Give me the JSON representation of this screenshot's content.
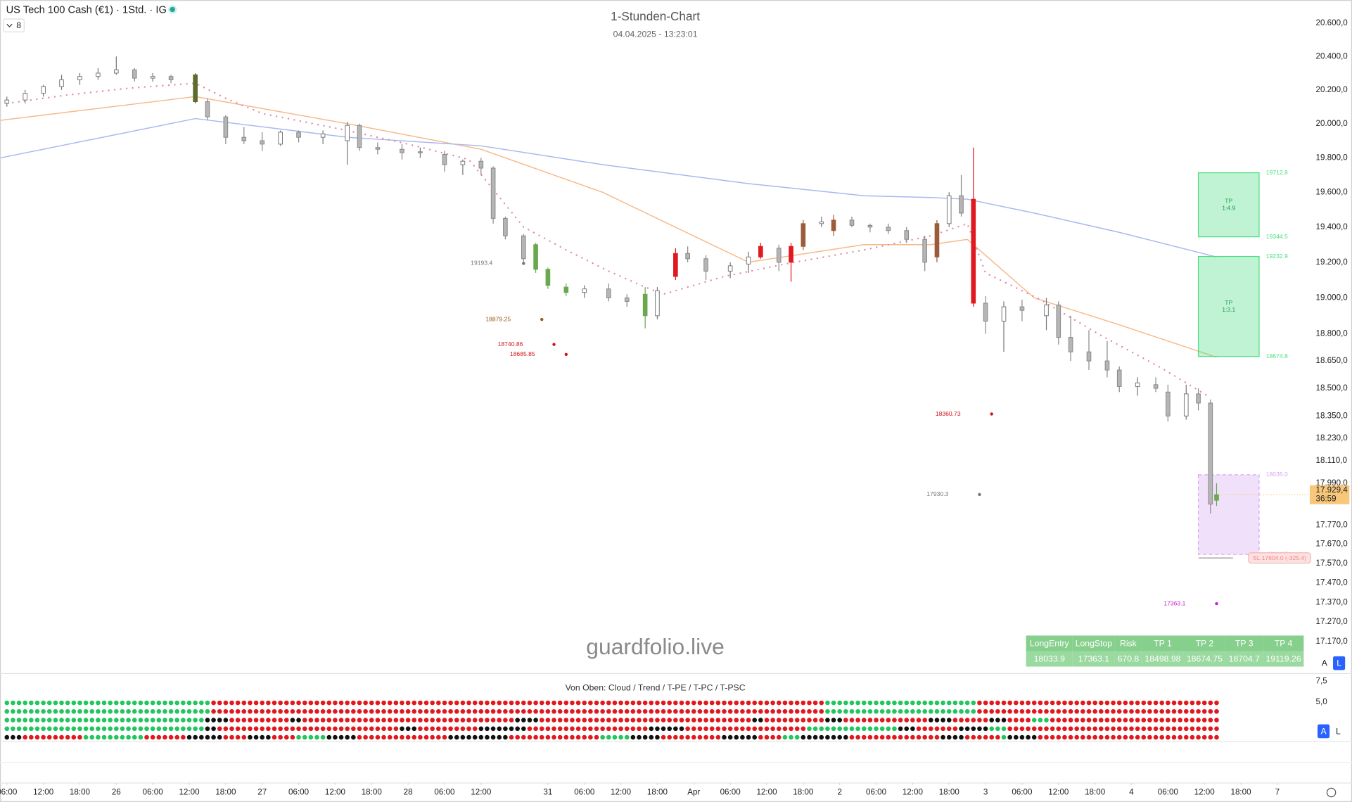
{
  "header": {
    "symbol": "US Tech 100 Cash (€1) · 1Std. · IG",
    "indicator_count": "8"
  },
  "chart_data": {
    "type": "candlestick",
    "title": "1-Stunden-Chart",
    "subtitle": "04.04.2025 - 13:23:01",
    "watermark": "guardfolio.live",
    "log_scale": true,
    "grid": false,
    "xlim": [
      -1.13,
      213.76
    ],
    "ylim": [
      17014,
      20742
    ],
    "xticks": [
      {
        "value": 0,
        "label": "06:00"
      },
      {
        "value": 6,
        "label": "12:00"
      },
      {
        "value": 12,
        "label": "18:00"
      },
      {
        "value": 18,
        "label": "26"
      },
      {
        "value": 24,
        "label": "06:00"
      },
      {
        "value": 30,
        "label": "12:00"
      },
      {
        "value": 36,
        "label": "18:00"
      },
      {
        "value": 42,
        "label": "27"
      },
      {
        "value": 48,
        "label": "06:00"
      },
      {
        "value": 54,
        "label": "12:00"
      },
      {
        "value": 60,
        "label": "18:00"
      },
      {
        "value": 66,
        "label": "28"
      },
      {
        "value": 72,
        "label": "06:00"
      },
      {
        "value": 78,
        "label": "12:00"
      },
      {
        "value": 89,
        "label": "31"
      },
      {
        "value": 95,
        "label": "06:00"
      },
      {
        "value": 101,
        "label": "12:00"
      },
      {
        "value": 107,
        "label": "18:00"
      },
      {
        "value": 113,
        "label": "Apr"
      },
      {
        "value": 119,
        "label": "06:00"
      },
      {
        "value": 125,
        "label": "12:00"
      },
      {
        "value": 131,
        "label": "18:00"
      },
      {
        "value": 137,
        "label": "2"
      },
      {
        "value": 143,
        "label": "06:00"
      },
      {
        "value": 149,
        "label": "12:00"
      },
      {
        "value": 155,
        "label": "18:00"
      },
      {
        "value": 161,
        "label": "3"
      },
      {
        "value": 167,
        "label": "06:00"
      },
      {
        "value": 173,
        "label": "12:00"
      },
      {
        "value": 179,
        "label": "18:00"
      },
      {
        "value": 185,
        "label": "4"
      },
      {
        "value": 191,
        "label": "06:00"
      },
      {
        "value": 197,
        "label": "12:00"
      },
      {
        "value": 203,
        "label": "18:00"
      },
      {
        "value": 209,
        "label": "7"
      }
    ],
    "yticks": [
      {
        "value": 20600,
        "label": "20.600,0"
      },
      {
        "value": 20400,
        "label": "20.400,0"
      },
      {
        "value": 20200,
        "label": "20.200,0"
      },
      {
        "value": 20000,
        "label": "20.000,0"
      },
      {
        "value": 19800,
        "label": "19.800,0"
      },
      {
        "value": 19600,
        "label": "19.600,0"
      },
      {
        "value": 19400,
        "label": "19.400,0"
      },
      {
        "value": 19200,
        "label": "19.200,0"
      },
      {
        "value": 19000,
        "label": "19.000,0"
      },
      {
        "value": 18800,
        "label": "18.800,0"
      },
      {
        "value": 18650,
        "label": "18.650,0"
      },
      {
        "value": 18500,
        "label": "18.500,0"
      },
      {
        "value": 18350,
        "label": "18.350,0"
      },
      {
        "value": 18230,
        "label": "18.230,0"
      },
      {
        "value": 18110,
        "label": "18.110,0"
      },
      {
        "value": 17990,
        "label": "17.990,0"
      },
      {
        "value": 17770,
        "label": "17.770,0"
      },
      {
        "value": 17670,
        "label": "17.670,0"
      },
      {
        "value": 17570,
        "label": "17.570,0"
      },
      {
        "value": 17470,
        "label": "17.470,0"
      },
      {
        "value": 17370,
        "label": "17.370,0"
      },
      {
        "value": 17270,
        "label": "17.270,0"
      },
      {
        "value": 17170,
        "label": "17.170,0"
      }
    ],
    "x": [
      0,
      3,
      6,
      9,
      12,
      15,
      18,
      21,
      24,
      27,
      31,
      33,
      36,
      39,
      42,
      45,
      48,
      52,
      56,
      58,
      61,
      65,
      68,
      72,
      75,
      78,
      80,
      82,
      85,
      87,
      89,
      92,
      95,
      99,
      102,
      105,
      107,
      110,
      112,
      115,
      119,
      122,
      124,
      127,
      129,
      131,
      134,
      136,
      139,
      142,
      145,
      148,
      151,
      153,
      155,
      157,
      159,
      161,
      164,
      167,
      171,
      173,
      175,
      178,
      181,
      183,
      186,
      189,
      191,
      194,
      196,
      198,
      199
    ],
    "ohlc": [
      [
        20120,
        20160,
        20100,
        20140
      ],
      [
        20140,
        20200,
        20120,
        20180
      ],
      [
        20180,
        20230,
        20160,
        20220
      ],
      [
        20220,
        20290,
        20200,
        20260
      ],
      [
        20260,
        20300,
        20230,
        20280
      ],
      [
        20280,
        20330,
        20260,
        20300
      ],
      [
        20300,
        20400,
        20290,
        20320
      ],
      [
        20320,
        20330,
        20250,
        20270
      ],
      [
        20270,
        20300,
        20250,
        20280
      ],
      [
        20280,
        20290,
        20240,
        20260
      ],
      [
        20290,
        20300,
        20120,
        20130
      ],
      [
        20130,
        20150,
        20020,
        20040
      ],
      [
        20040,
        20050,
        19880,
        19920
      ],
      [
        19920,
        19980,
        19880,
        19900
      ],
      [
        19900,
        19950,
        19840,
        19880
      ],
      [
        19880,
        19960,
        19870,
        19950
      ],
      [
        19950,
        19960,
        19890,
        19920
      ],
      [
        19920,
        19960,
        19880,
        19940
      ],
      [
        19900,
        20010,
        19760,
        19990
      ],
      [
        19990,
        20000,
        19840,
        19860
      ],
      [
        19860,
        19890,
        19820,
        19850
      ],
      [
        19850,
        19880,
        19790,
        19830
      ],
      [
        19830,
        19860,
        19800,
        19835
      ],
      [
        19820,
        19840,
        19720,
        19760
      ],
      [
        19760,
        19790,
        19700,
        19780
      ],
      [
        19780,
        19800,
        19700,
        19740
      ],
      [
        19740,
        19750,
        19420,
        19450
      ],
      [
        19450,
        19460,
        19330,
        19350
      ],
      [
        19350,
        19360,
        19200,
        19220
      ],
      [
        19300,
        19310,
        19140,
        19160
      ],
      [
        19160,
        19170,
        19050,
        19070
      ],
      [
        19060,
        19080,
        19010,
        19030
      ],
      [
        19030,
        19070,
        19000,
        19050
      ],
      [
        19050,
        19080,
        18980,
        19000
      ],
      [
        19000,
        19020,
        18950,
        18980
      ],
      [
        19020,
        19060,
        18830,
        18900
      ],
      [
        18900,
        19060,
        18880,
        19040
      ],
      [
        19120,
        19280,
        19100,
        19250
      ],
      [
        19250,
        19290,
        19200,
        19220
      ],
      [
        19220,
        19240,
        19100,
        19150
      ],
      [
        19150,
        19200,
        19110,
        19180
      ],
      [
        19190,
        19260,
        19140,
        19230
      ],
      [
        19230,
        19310,
        19220,
        19290
      ],
      [
        19280,
        19300,
        19150,
        19200
      ],
      [
        19200,
        19310,
        19090,
        19290
      ],
      [
        19290,
        19440,
        19270,
        19420
      ],
      [
        19420,
        19460,
        19400,
        19430
      ],
      [
        19380,
        19470,
        19350,
        19440
      ],
      [
        19440,
        19460,
        19400,
        19410
      ],
      [
        19410,
        19420,
        19370,
        19400
      ],
      [
        19400,
        19420,
        19360,
        19380
      ],
      [
        19380,
        19400,
        19310,
        19330
      ],
      [
        19330,
        19350,
        19150,
        19200
      ],
      [
        19230,
        19440,
        19200,
        19420
      ],
      [
        19420,
        19600,
        19400,
        19580
      ],
      [
        19580,
        19700,
        19460,
        19480
      ],
      [
        19560,
        19860,
        18950,
        18970
      ],
      [
        18970,
        19010,
        18800,
        18870
      ],
      [
        18870,
        18980,
        18700,
        18950
      ],
      [
        18950,
        18990,
        18870,
        18930
      ],
      [
        18900,
        19000,
        18820,
        18960
      ],
      [
        18960,
        18980,
        18740,
        18780
      ],
      [
        18780,
        18900,
        18650,
        18700
      ],
      [
        18700,
        18820,
        18600,
        18650
      ],
      [
        18650,
        18760,
        18560,
        18600
      ],
      [
        18600,
        18620,
        18480,
        18510
      ],
      [
        18510,
        18560,
        18460,
        18530
      ],
      [
        18520,
        18560,
        18480,
        18500
      ],
      [
        18480,
        18520,
        18320,
        18350
      ],
      [
        18350,
        18520,
        18330,
        18470
      ],
      [
        18470,
        18500,
        18380,
        18420
      ],
      [
        18420,
        18440,
        17830,
        17880
      ],
      [
        17900,
        17990,
        17870,
        17929.4
      ]
    ],
    "colors": [
      "#ffffff",
      "#ffffff",
      "#ffffff",
      "#ffffff",
      "#ffffff",
      "#ffffff",
      "#ffffff",
      "#b5b5b5",
      "#ffffff",
      "#b5b5b5",
      "#5d6b2c",
      "#b5b5b5",
      "#b5b5b5",
      "#b5b5b5",
      "#b5b5b5",
      "#ffffff",
      "#b5b5b5",
      "#ffffff",
      "#ffffff",
      "#b5b5b5",
      "#b5b5b5",
      "#b5b5b5",
      "#ffffff",
      "#b5b5b5",
      "#ffffff",
      "#b5b5b5",
      "#b5b5b5",
      "#b5b5b5",
      "#b5b5b5",
      "#6aa84f",
      "#6aa84f",
      "#6aa84f",
      "#ffffff",
      "#b5b5b5",
      "#b5b5b5",
      "#6aa84f",
      "#ffffff",
      "#e0191e",
      "#b5b5b5",
      "#b5b5b5",
      "#ffffff",
      "#ffffff",
      "#e0191e",
      "#b5b5b5",
      "#e0191e",
      "#9c5b3a",
      "#ffffff",
      "#9c5b3a",
      "#b5b5b5",
      "#b5b5b5",
      "#b5b5b5",
      "#b5b5b5",
      "#b5b5b5",
      "#9c5b3a",
      "#ffffff",
      "#b5b5b5",
      "#e0191e",
      "#b5b5b5",
      "#ffffff",
      "#b5b5b5",
      "#ffffff",
      "#b5b5b5",
      "#b5b5b5",
      "#b5b5b5",
      "#b5b5b5",
      "#b5b5b5",
      "#ffffff",
      "#b5b5b5",
      "#b5b5b5",
      "#ffffff",
      "#b5b5b5",
      "#b5b5b5",
      "#6aa84f"
    ],
    "lines": [
      {
        "color": "#f6b98a",
        "x": [
          -1,
          31,
          56,
          78,
          98,
          122,
          141,
          152,
          158,
          169,
          183,
          199
        ],
        "values": [
          20020,
          20160,
          20000,
          19850,
          19600,
          19200,
          19300,
          19300,
          19330,
          19000,
          18850,
          18670
        ]
      },
      {
        "color": "#a9b8ee",
        "x": [
          -1,
          31,
          56,
          78,
          98,
          122,
          141,
          152,
          158,
          169,
          183,
          199
        ],
        "values": [
          19800,
          20030,
          19920,
          19870,
          19760,
          19650,
          19580,
          19570,
          19560,
          19480,
          19370,
          19230
        ]
      }
    ],
    "trail": {
      "color": "#e08aa8",
      "x": [
        0,
        10,
        20,
        31,
        36,
        42,
        56,
        66,
        76,
        79,
        85,
        92,
        99,
        105,
        108,
        118,
        128,
        141,
        152,
        158,
        161,
        170,
        180,
        190,
        198
      ],
      "values": [
        20120,
        20170,
        20210,
        20240,
        20150,
        20060,
        19960,
        19880,
        19790,
        19660,
        19400,
        19270,
        19150,
        19060,
        19020,
        19120,
        19190,
        19270,
        19350,
        19420,
        19140,
        18990,
        18790,
        18610,
        18450
      ]
    },
    "levels": [
      {
        "value": 19193.4,
        "x": 85,
        "color": "#777777"
      },
      {
        "value": 18879.25,
        "x": 88,
        "color": "#9c5b1a"
      },
      {
        "value": 18740.86,
        "x": 90,
        "color": "#d0141a"
      },
      {
        "value": 18685.85,
        "x": 92,
        "color": "#d0141a"
      },
      {
        "value": 18360.73,
        "x": 162,
        "color": "#d0141a"
      },
      {
        "value": 17930.3,
        "x": 160,
        "color": "#777777"
      },
      {
        "value": 17363.1,
        "x": 199,
        "color": "#c026d3"
      }
    ],
    "zones": [
      {
        "name": "TP",
        "ratio": "1:4.9",
        "top": 19712.8,
        "bottom": 19344.5,
        "x": [
          196,
          206
        ],
        "color": "#4ade80"
      },
      {
        "name": "TP",
        "ratio": "1:3.1",
        "top": 19232.9,
        "bottom": 18674.8,
        "x": [
          196,
          206
        ],
        "color": "#4ade80"
      },
      {
        "top": {
          "value": 18035,
          "label": "18035.0"
        },
        "bottom": 17616.7,
        "x": [
          196,
          206
        ],
        "color": "#d8a5f0"
      }
    ],
    "sl_label": "SL 17604.0 (-325.4)",
    "last_price": {
      "value": 17929.4,
      "label": "17.929,4",
      "countdown": "36:59",
      "color": "#f8c77a"
    },
    "table": {
      "header": [
        "LongEntry",
        "LongStop",
        "Risk",
        "TP 1",
        "TP 2",
        "TP 3",
        "TP 4"
      ],
      "rows": [
        [
          18033.9,
          17363.1,
          670.8,
          18498.98,
          18674.75,
          18704.7,
          19119.26
        ]
      ]
    }
  },
  "indicator": {
    "title": "Von Oben: Cloud / Trend / T-PE / T-PC / T-PSC",
    "ylim": [
      0.2,
      8.44
    ],
    "yticks": [
      {
        "value": 7.5,
        "label": "7,5"
      },
      {
        "value": 5,
        "label": "5,0"
      }
    ],
    "colors": {
      "g": "#22c55e",
      "r": "#e0191e",
      "k": "#111111"
    },
    "rows": [
      [
        [
          "g",
          34
        ],
        [
          "r",
          101
        ],
        [
          "g",
          25
        ],
        [
          "r",
          40
        ]
      ],
      [
        [
          "g",
          34
        ],
        [
          "r",
          101
        ],
        [
          "g",
          25
        ],
        [
          "r",
          40
        ]
      ],
      [
        [
          "g",
          33
        ],
        [
          "k",
          4
        ],
        [
          "r",
          10
        ],
        [
          "k",
          2
        ],
        [
          "r",
          35
        ],
        [
          "k",
          4
        ],
        [
          "r",
          35
        ],
        [
          "k",
          2
        ],
        [
          "r",
          10
        ],
        [
          "k",
          3
        ],
        [
          "r",
          14
        ],
        [
          "k",
          4
        ],
        [
          "r",
          6
        ],
        [
          "k",
          3
        ],
        [
          "r",
          4
        ],
        [
          "g",
          3
        ],
        [
          "r",
          28
        ]
      ],
      [
        [
          "g",
          33
        ],
        [
          "k",
          2
        ],
        [
          "r",
          30
        ],
        [
          "k",
          3
        ],
        [
          "r",
          10
        ],
        [
          "k",
          8
        ],
        [
          "r",
          20
        ],
        [
          "k",
          6
        ],
        [
          "r",
          20
        ],
        [
          "g",
          15
        ],
        [
          "k",
          3
        ],
        [
          "r",
          7
        ],
        [
          "k",
          5
        ],
        [
          "g",
          3
        ],
        [
          "r",
          35
        ]
      ],
      [
        [
          "k",
          3
        ],
        [
          "r",
          10
        ],
        [
          "g",
          10
        ],
        [
          "r",
          7
        ],
        [
          "k",
          6
        ],
        [
          "r",
          4
        ],
        [
          "k",
          4
        ],
        [
          "r",
          4
        ],
        [
          "g",
          5
        ],
        [
          "k",
          5
        ],
        [
          "r",
          15
        ],
        [
          "k",
          10
        ],
        [
          "r",
          15
        ],
        [
          "g",
          5
        ],
        [
          "k",
          5
        ],
        [
          "r",
          10
        ],
        [
          "k",
          6
        ],
        [
          "r",
          4
        ],
        [
          "g",
          3
        ],
        [
          "k",
          8
        ],
        [
          "r",
          15
        ],
        [
          "k",
          4
        ],
        [
          "r",
          6
        ],
        [
          "g",
          1
        ],
        [
          "k",
          5
        ],
        [
          "r",
          30
        ]
      ]
    ]
  },
  "buttons": [
    "A",
    "L",
    "A",
    "L"
  ]
}
